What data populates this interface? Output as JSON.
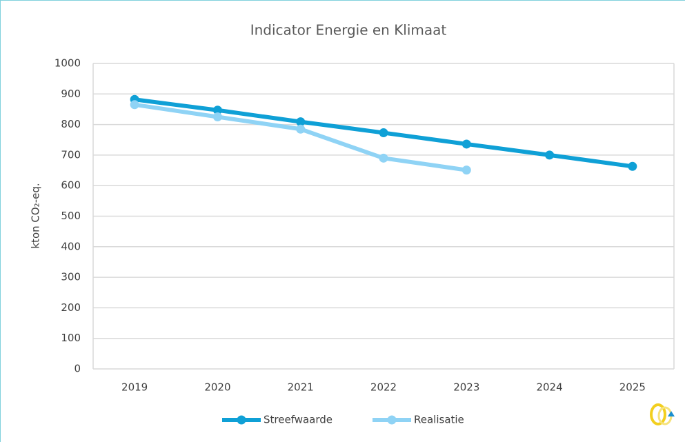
{
  "chart_data": {
    "type": "line",
    "title": "Indicator Energie en Klimaat",
    "y_label": "kton CO₂-eq.",
    "categories": [
      "2019",
      "2020",
      "2021",
      "2022",
      "2023",
      "2024",
      "2025"
    ],
    "series": [
      {
        "name": "Streefwaarde",
        "color": "#0fa0d6",
        "values": [
          882,
          847,
          809,
          773,
          736,
          700,
          663
        ]
      },
      {
        "name": "Realisatie",
        "color": "#8fd3f5",
        "values": [
          865,
          825,
          785,
          690,
          651,
          null,
          null
        ]
      }
    ],
    "ylim": [
      0,
      1000
    ],
    "yticks": [
      0,
      100,
      200,
      300,
      400,
      500,
      600,
      700,
      800,
      900,
      1000
    ],
    "grid": true,
    "legend": "bottom"
  }
}
